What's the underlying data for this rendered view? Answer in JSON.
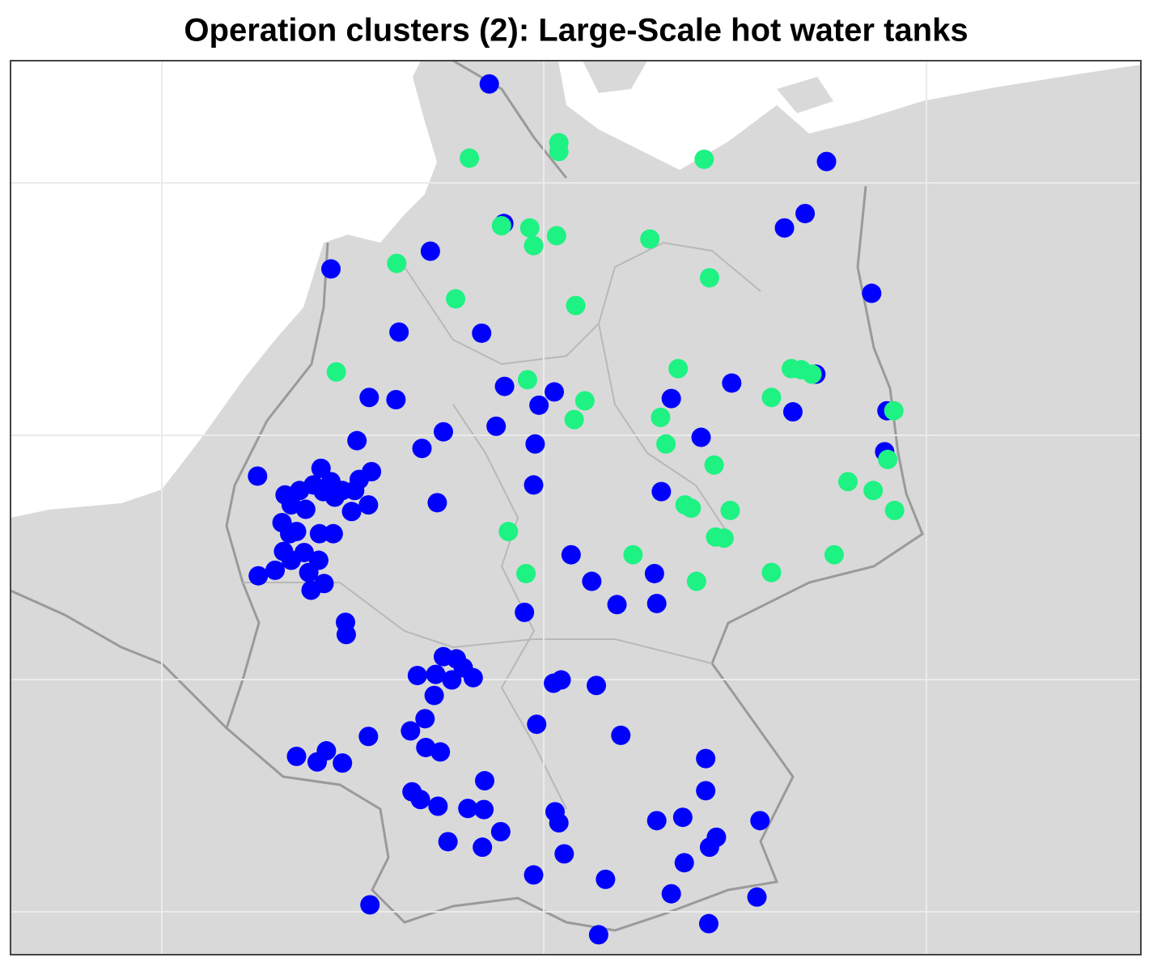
{
  "chart_data": {
    "type": "scatter",
    "title": "Operation clusters (2): Large-Scale hot water tanks",
    "xlim": [
      3.02,
      17.8
    ],
    "ylim": [
      47.22,
      55.29
    ],
    "series": [
      {
        "color": "#0000ff",
        "x": [
          9.28,
          13.69,
          13.41,
          13.14,
          9.47,
          8.51,
          7.21,
          14.28,
          8.1,
          9.18,
          13.55,
          12.45,
          9.48,
          10.13,
          7.71,
          8.06,
          11.66,
          9.93,
          13.25,
          14.48,
          9.37,
          8.68,
          7.55,
          8.4,
          9.88,
          12.05,
          14.45,
          6.25,
          7.08,
          7.74,
          7.58,
          6.98,
          7.21,
          6.8,
          6.61,
          7.36,
          7.52,
          7.11,
          7.26,
          7.7,
          7.48,
          6.69,
          6.88,
          6.57,
          6.76,
          7.06,
          7.24,
          6.67,
          9.86,
          11.53,
          8.6,
          6.59,
          6.86,
          7.05,
          6.69,
          6.48,
          6.26,
          6.92,
          7.12,
          6.95,
          10.35,
          10.62,
          11.44,
          10.95,
          11.47,
          9.74,
          7.4,
          7.41,
          8.68,
          8.85,
          8.94,
          8.34,
          8.58,
          9.07,
          8.79,
          10.12,
          10.22,
          10.68,
          8.56,
          8.44,
          9.9,
          8.25,
          7.7,
          11.0,
          8.45,
          8.64,
          7.15,
          6.76,
          7.03,
          7.36,
          12.11,
          9.22,
          12.11,
          8.27,
          8.38,
          8.61,
          9.0,
          9.21,
          10.14,
          10.19,
          9.43,
          11.47,
          11.81,
          12.82,
          12.25,
          12.16,
          8.74,
          9.19,
          10.26,
          11.83,
          9.86,
          10.8,
          11.66,
          12.78,
          7.72,
          12.15,
          10.71
        ],
        "y": [
          55.08,
          54.38,
          53.91,
          53.78,
          53.82,
          53.57,
          53.41,
          53.19,
          52.84,
          52.83,
          52.46,
          52.38,
          52.35,
          52.3,
          52.25,
          52.23,
          52.24,
          52.18,
          52.12,
          52.13,
          51.99,
          51.94,
          51.86,
          51.79,
          51.83,
          51.89,
          51.76,
          51.54,
          51.61,
          51.58,
          51.51,
          51.46,
          51.49,
          51.41,
          51.37,
          51.41,
          51.41,
          51.4,
          51.35,
          51.28,
          51.22,
          51.28,
          51.24,
          51.12,
          51.04,
          51.02,
          51.02,
          51.02,
          51.46,
          51.4,
          51.3,
          50.86,
          50.85,
          50.78,
          50.78,
          50.69,
          50.64,
          50.67,
          50.57,
          50.51,
          50.83,
          50.59,
          50.66,
          50.38,
          50.39,
          50.31,
          50.22,
          50.11,
          49.91,
          49.89,
          49.81,
          49.74,
          49.75,
          49.72,
          49.7,
          49.67,
          49.7,
          49.65,
          49.56,
          49.35,
          49.3,
          49.24,
          49.19,
          49.2,
          49.09,
          49.05,
          49.06,
          49.01,
          48.96,
          48.95,
          48.99,
          48.79,
          48.7,
          48.69,
          48.62,
          48.56,
          48.54,
          48.53,
          48.51,
          48.41,
          48.33,
          48.43,
          48.46,
          48.43,
          48.28,
          48.19,
          48.24,
          48.19,
          48.13,
          48.05,
          47.94,
          47.9,
          47.77,
          47.74,
          47.67,
          47.5,
          47.4
        ]
      },
      {
        "color": "#1ef283",
        "x": [
          9.02,
          10.19,
          10.19,
          12.09,
          9.44,
          9.81,
          10.16,
          9.86,
          11.38,
          8.07,
          12.16,
          8.84,
          10.41,
          7.28,
          9.78,
          11.75,
          13.23,
          13.36,
          13.5,
          12.97,
          10.53,
          10.39,
          11.52,
          11.59,
          14.57,
          12.22,
          14.49,
          13.97,
          14.3,
          11.84,
          11.92,
          12.43,
          14.58,
          9.53,
          12.24,
          12.35,
          11.16,
          13.79,
          9.76,
          11.99,
          12.97
        ],
        "y": [
          54.41,
          54.55,
          54.47,
          54.4,
          53.8,
          53.78,
          53.71,
          53.62,
          53.68,
          53.46,
          53.33,
          53.14,
          53.08,
          52.48,
          52.41,
          52.51,
          52.51,
          52.5,
          52.46,
          52.25,
          52.22,
          52.05,
          52.07,
          51.83,
          52.13,
          51.64,
          51.69,
          51.49,
          51.41,
          51.28,
          51.25,
          51.23,
          51.23,
          51.04,
          50.99,
          50.98,
          50.83,
          50.83,
          50.66,
          50.59,
          50.67
        ]
      }
    ]
  }
}
